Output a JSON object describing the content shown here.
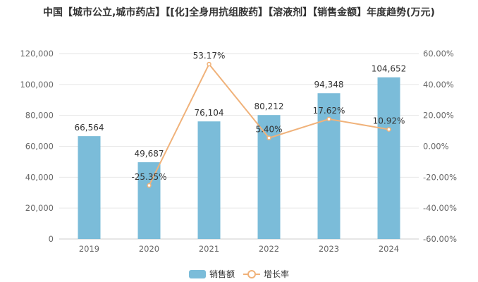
{
  "chart_data": {
    "type": "bar+line",
    "title": "中国【城市公立,城市药店】【[化]全身用抗组胺药】【溶液剂】【销售金额】年度趋势(万元)",
    "categories": [
      "2019",
      "2020",
      "2021",
      "2022",
      "2023",
      "2024"
    ],
    "series": [
      {
        "name": "销售额",
        "type": "bar",
        "axis": "left",
        "color": "#7bbcd9",
        "values": [
          66564,
          49687,
          76104,
          80212,
          94348,
          104652
        ],
        "labels": [
          "66,564",
          "49,687",
          "76,104",
          "80,212",
          "94,348",
          "104,652"
        ]
      },
      {
        "name": "增长率",
        "type": "line",
        "axis": "right",
        "color": "#f0b27a",
        "values": [
          null,
          -25.35,
          53.17,
          5.4,
          17.62,
          10.92
        ],
        "labels": [
          "",
          "-25.35%",
          "53.17%",
          "5.40%",
          "17.62%",
          "10.92%"
        ]
      }
    ],
    "left_axis": {
      "range": [
        0,
        120000
      ],
      "ticks": [
        "0",
        "20,000",
        "40,000",
        "60,000",
        "80,000",
        "100,000",
        "120,000"
      ]
    },
    "right_axis": {
      "range": [
        -60,
        60
      ],
      "ticks": [
        "-60.00%",
        "-40.00%",
        "-20.00%",
        "0.00%",
        "20.00%",
        "40.00%",
        "60.00%"
      ]
    },
    "grid": true,
    "legend": "bottom-center"
  }
}
